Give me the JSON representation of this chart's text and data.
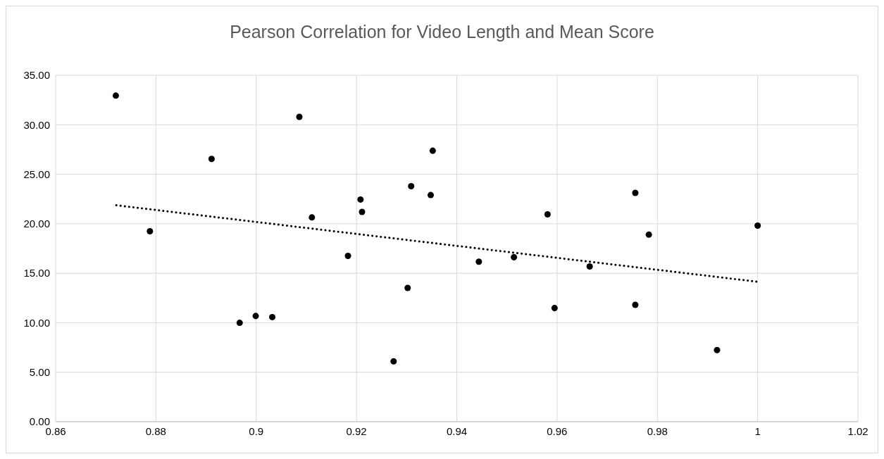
{
  "chart_data": {
    "type": "scatter",
    "title": "Pearson Correlation for Video Length and Mean Score",
    "xlim": [
      0.86,
      1.02
    ],
    "xticks": [
      0.86,
      0.88,
      0.9,
      0.92,
      0.94,
      0.96,
      0.98,
      1,
      1.02
    ],
    "ylim": [
      0,
      35
    ],
    "yticks": [
      {
        "value": 0,
        "label": "0.00"
      },
      {
        "value": 5,
        "label": "5.00"
      },
      {
        "value": 10,
        "label": "10.00"
      },
      {
        "value": 15,
        "label": "15.00"
      },
      {
        "value": 20,
        "label": "20.00"
      },
      {
        "value": 25,
        "label": "25.00"
      },
      {
        "value": 30,
        "label": "30.00"
      },
      {
        "value": 35,
        "label": "35.00"
      }
    ],
    "grid": true,
    "series": [
      {
        "color": "#000000",
        "marker": "circle",
        "x": [
          0.872,
          0.8788,
          0.8911,
          0.8967,
          0.8999,
          0.9032,
          0.9086,
          0.9111,
          0.9183,
          0.9208,
          0.9211,
          0.9274,
          0.9302,
          0.9309,
          0.9348,
          0.9352,
          0.9444,
          0.9514,
          0.9581,
          0.9595,
          0.9665,
          0.9756,
          0.9756,
          0.9783,
          0.9919,
          1.0
        ],
        "values": [
          32.95,
          19.24,
          26.55,
          9.99,
          10.68,
          10.57,
          30.8,
          20.64,
          16.75,
          22.45,
          21.2,
          6.1,
          13.52,
          23.8,
          22.9,
          27.38,
          16.17,
          16.62,
          20.95,
          11.48,
          15.69,
          23.12,
          11.81,
          18.9,
          7.24,
          19.81
        ]
      },
      {
        "type": "line",
        "color": "#000000",
        "marker": "none",
        "line_style": "dotted",
        "x": [
          0.8721,
          1.0
        ],
        "values": [
          21.87,
          14.14
        ]
      }
    ]
  }
}
